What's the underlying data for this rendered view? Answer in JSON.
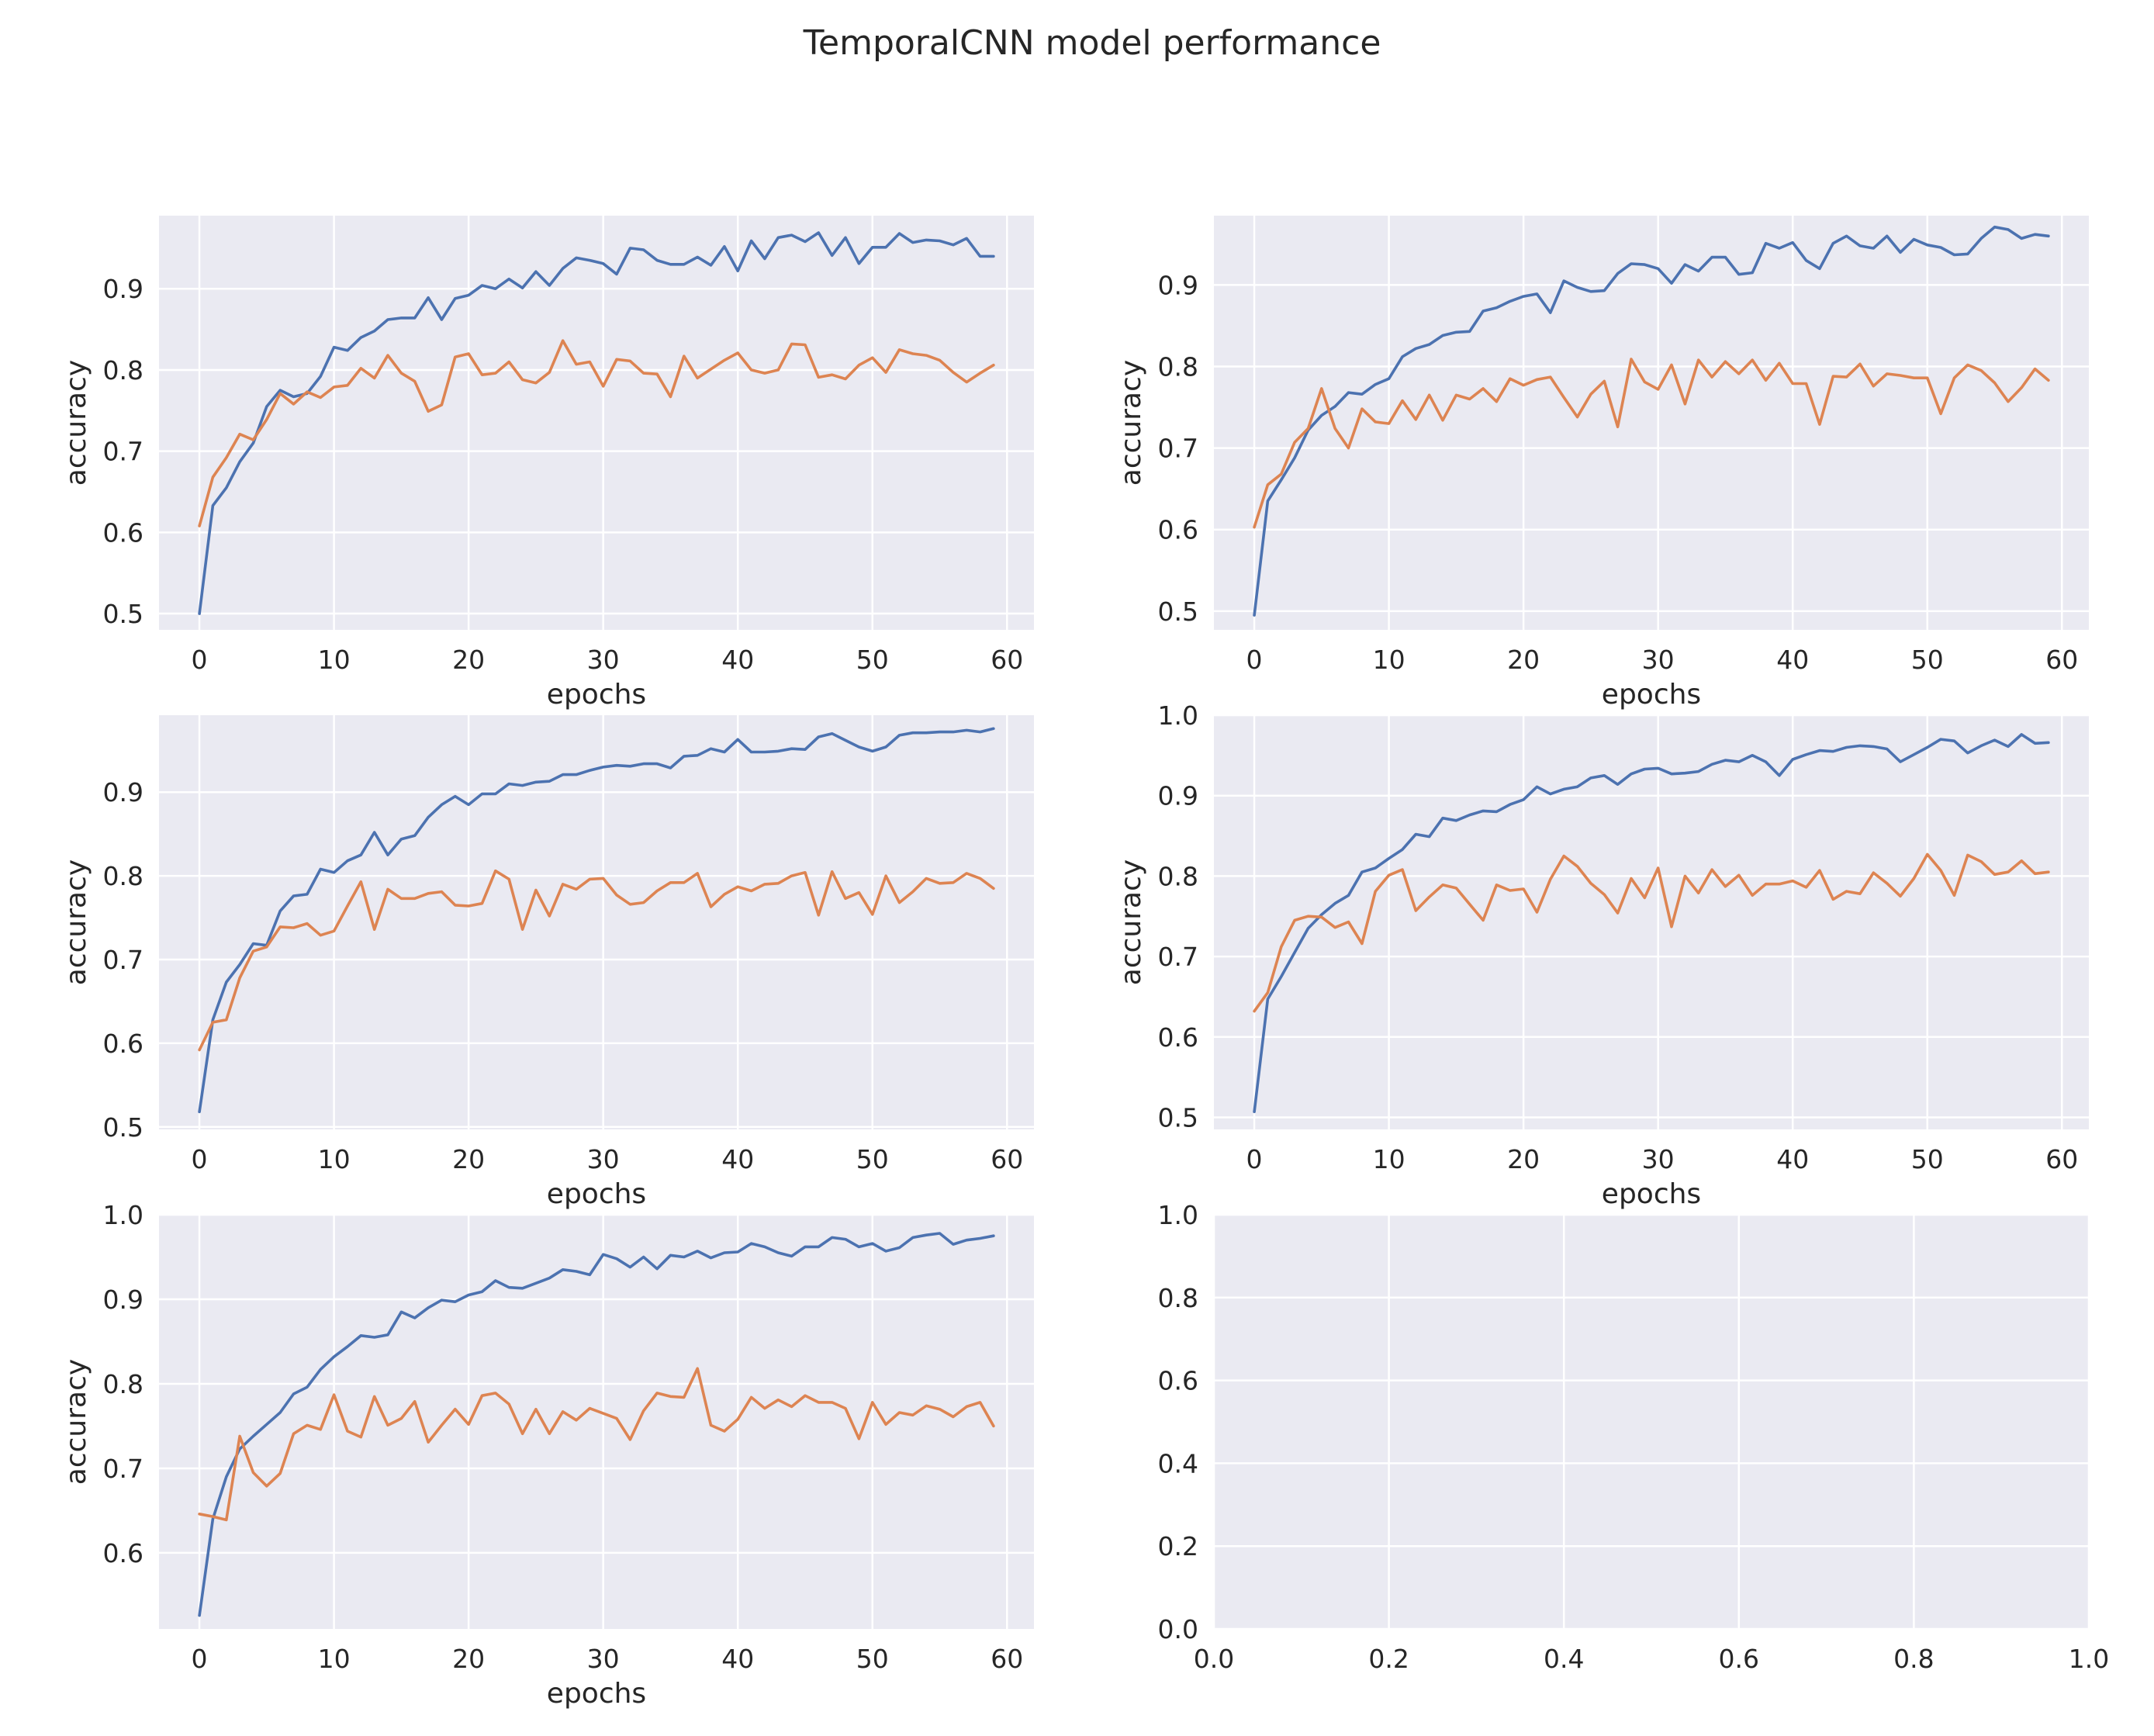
{
  "title": "TemporalCNN model performance",
  "colors": {
    "background": "#eaeaf2",
    "series_1": "#4c72b0",
    "series_2": "#dd8452",
    "grid": "#ffffff"
  },
  "chart_data": [
    {
      "type": "line",
      "xlabel": "epochs",
      "ylabel": "accuracy",
      "xlim": [
        -3,
        62
      ],
      "ylim": [
        0.48,
        0.99
      ],
      "xticks": [
        0,
        10,
        20,
        30,
        40,
        50,
        60
      ],
      "yticks": [
        0.5,
        0.6,
        0.7,
        0.8,
        0.9
      ],
      "x": [
        0,
        1,
        2,
        3,
        4,
        5,
        6,
        7,
        8,
        9,
        10,
        11,
        12,
        13,
        14,
        15,
        16,
        17,
        18,
        19,
        20,
        21,
        22,
        23,
        24,
        25,
        26,
        27,
        28,
        29,
        30,
        31,
        32,
        33,
        34,
        35,
        36,
        37,
        38,
        39,
        40,
        41,
        42,
        43,
        44,
        45,
        46,
        47,
        48,
        49,
        50,
        51,
        52,
        53,
        54,
        55,
        56,
        57,
        58,
        59
      ],
      "series": [
        {
          "color": "#4c72b0",
          "values": [
            0.5,
            0.633,
            0.655,
            0.687,
            0.71,
            0.755,
            0.775,
            0.767,
            0.771,
            0.792,
            0.828,
            0.824,
            0.84,
            0.848,
            0.862,
            0.864,
            0.864,
            0.889,
            0.862,
            0.888,
            0.892,
            0.904,
            0.9,
            0.912,
            0.901,
            0.921,
            0.904,
            0.925,
            0.938,
            0.935,
            0.931,
            0.918,
            0.95,
            0.948,
            0.935,
            0.93,
            0.93,
            0.939,
            0.929,
            0.952,
            0.922,
            0.959,
            0.937,
            0.963,
            0.966,
            0.958,
            0.969,
            0.941,
            0.963,
            0.931,
            0.951,
            0.951,
            0.968,
            0.957,
            0.96,
            0.959,
            0.954,
            0.962,
            0.94,
            0.94
          ]
        },
        {
          "color": "#dd8452",
          "values": [
            0.608,
            0.668,
            0.692,
            0.721,
            0.714,
            0.739,
            0.771,
            0.758,
            0.773,
            0.766,
            0.779,
            0.781,
            0.802,
            0.79,
            0.818,
            0.796,
            0.786,
            0.749,
            0.757,
            0.816,
            0.82,
            0.794,
            0.796,
            0.81,
            0.788,
            0.784,
            0.797,
            0.836,
            0.807,
            0.81,
            0.78,
            0.813,
            0.811,
            0.796,
            0.795,
            0.767,
            0.817,
            0.79,
            0.801,
            0.812,
            0.821,
            0.8,
            0.796,
            0.8,
            0.832,
            0.831,
            0.791,
            0.794,
            0.789,
            0.806,
            0.815,
            0.797,
            0.825,
            0.82,
            0.818,
            0.812,
            0.797,
            0.785,
            0.796,
            0.806
          ]
        }
      ]
    },
    {
      "type": "line",
      "xlabel": "epochs",
      "ylabel": "accuracy",
      "xlim": [
        -3,
        62
      ],
      "ylim": [
        0.477,
        0.985
      ],
      "xticks": [
        0,
        10,
        20,
        30,
        40,
        50,
        60
      ],
      "yticks": [
        0.5,
        0.6,
        0.7,
        0.8,
        0.9
      ],
      "x": [
        0,
        1,
        2,
        3,
        4,
        5,
        6,
        7,
        8,
        9,
        10,
        11,
        12,
        13,
        14,
        15,
        16,
        17,
        18,
        19,
        20,
        21,
        22,
        23,
        24,
        25,
        26,
        27,
        28,
        29,
        30,
        31,
        32,
        33,
        34,
        35,
        36,
        37,
        38,
        39,
        40,
        41,
        42,
        43,
        44,
        45,
        46,
        47,
        48,
        49,
        50,
        51,
        52,
        53,
        54,
        55,
        56,
        57,
        58,
        59
      ],
      "series": [
        {
          "color": "#4c72b0",
          "values": [
            0.495,
            0.635,
            0.661,
            0.688,
            0.722,
            0.74,
            0.751,
            0.768,
            0.766,
            0.778,
            0.785,
            0.812,
            0.822,
            0.827,
            0.838,
            0.842,
            0.843,
            0.868,
            0.872,
            0.88,
            0.886,
            0.889,
            0.866,
            0.905,
            0.897,
            0.892,
            0.893,
            0.914,
            0.926,
            0.925,
            0.92,
            0.902,
            0.925,
            0.917,
            0.934,
            0.934,
            0.913,
            0.915,
            0.951,
            0.945,
            0.952,
            0.93,
            0.92,
            0.951,
            0.96,
            0.948,
            0.945,
            0.96,
            0.94,
            0.956,
            0.949,
            0.946,
            0.937,
            0.938,
            0.957,
            0.971,
            0.968,
            0.957,
            0.962,
            0.96
          ]
        },
        {
          "color": "#dd8452",
          "values": [
            0.603,
            0.655,
            0.668,
            0.707,
            0.724,
            0.773,
            0.724,
            0.7,
            0.748,
            0.732,
            0.73,
            0.758,
            0.735,
            0.765,
            0.734,
            0.765,
            0.76,
            0.773,
            0.757,
            0.785,
            0.777,
            0.784,
            0.787,
            0.762,
            0.738,
            0.766,
            0.782,
            0.726,
            0.809,
            0.781,
            0.772,
            0.802,
            0.754,
            0.808,
            0.787,
            0.806,
            0.791,
            0.808,
            0.783,
            0.804,
            0.779,
            0.779,
            0.729,
            0.788,
            0.787,
            0.803,
            0.776,
            0.791,
            0.789,
            0.786,
            0.786,
            0.742,
            0.786,
            0.802,
            0.795,
            0.78,
            0.757,
            0.774,
            0.797,
            0.783
          ]
        }
      ]
    },
    {
      "type": "line",
      "xlabel": "epochs",
      "ylabel": "accuracy",
      "xlim": [
        -3,
        62
      ],
      "ylim": [
        0.497,
        0.992
      ],
      "xticks": [
        0,
        10,
        20,
        30,
        40,
        50,
        60
      ],
      "yticks": [
        0.5,
        0.6,
        0.7,
        0.8,
        0.9
      ],
      "x": [
        0,
        1,
        2,
        3,
        4,
        5,
        6,
        7,
        8,
        9,
        10,
        11,
        12,
        13,
        14,
        15,
        16,
        17,
        18,
        19,
        20,
        21,
        22,
        23,
        24,
        25,
        26,
        27,
        28,
        29,
        30,
        31,
        32,
        33,
        34,
        35,
        36,
        37,
        38,
        39,
        40,
        41,
        42,
        43,
        44,
        45,
        46,
        47,
        48,
        49,
        50,
        51,
        52,
        53,
        54,
        55,
        56,
        57,
        58,
        59
      ],
      "series": [
        {
          "color": "#4c72b0",
          "values": [
            0.518,
            0.628,
            0.673,
            0.694,
            0.719,
            0.717,
            0.758,
            0.776,
            0.778,
            0.808,
            0.804,
            0.818,
            0.825,
            0.852,
            0.825,
            0.844,
            0.848,
            0.87,
            0.885,
            0.895,
            0.885,
            0.898,
            0.898,
            0.91,
            0.908,
            0.912,
            0.913,
            0.921,
            0.921,
            0.926,
            0.93,
            0.932,
            0.931,
            0.934,
            0.934,
            0.929,
            0.943,
            0.944,
            0.952,
            0.948,
            0.963,
            0.948,
            0.948,
            0.949,
            0.952,
            0.951,
            0.966,
            0.97,
            0.962,
            0.954,
            0.949,
            0.954,
            0.968,
            0.971,
            0.971,
            0.972,
            0.972,
            0.974,
            0.972,
            0.976
          ]
        },
        {
          "color": "#dd8452",
          "values": [
            0.592,
            0.625,
            0.628,
            0.678,
            0.71,
            0.715,
            0.739,
            0.738,
            0.743,
            0.729,
            0.734,
            0.764,
            0.793,
            0.736,
            0.784,
            0.773,
            0.773,
            0.779,
            0.781,
            0.765,
            0.764,
            0.767,
            0.806,
            0.796,
            0.736,
            0.783,
            0.752,
            0.79,
            0.784,
            0.796,
            0.797,
            0.777,
            0.766,
            0.768,
            0.782,
            0.792,
            0.792,
            0.803,
            0.763,
            0.778,
            0.787,
            0.782,
            0.79,
            0.791,
            0.8,
            0.804,
            0.753,
            0.805,
            0.773,
            0.78,
            0.754,
            0.8,
            0.768,
            0.781,
            0.797,
            0.791,
            0.792,
            0.803,
            0.797,
            0.785
          ]
        }
      ]
    },
    {
      "type": "line",
      "xlabel": "epochs",
      "ylabel": "accuracy",
      "xlim": [
        -3,
        62
      ],
      "ylim": [
        0.485,
        1.0
      ],
      "xticks": [
        0,
        10,
        20,
        30,
        40,
        50,
        60
      ],
      "yticks": [
        0.5,
        0.6,
        0.7,
        0.8,
        0.9,
        1.0
      ],
      "x": [
        0,
        1,
        2,
        3,
        4,
        5,
        6,
        7,
        8,
        9,
        10,
        11,
        12,
        13,
        14,
        15,
        16,
        17,
        18,
        19,
        20,
        21,
        22,
        23,
        24,
        25,
        26,
        27,
        28,
        29,
        30,
        31,
        32,
        33,
        34,
        35,
        36,
        37,
        38,
        39,
        40,
        41,
        42,
        43,
        44,
        45,
        46,
        47,
        48,
        49,
        50,
        51,
        52,
        53,
        54,
        55,
        56,
        57,
        58,
        59
      ],
      "series": [
        {
          "color": "#4c72b0",
          "values": [
            0.507,
            0.647,
            0.675,
            0.705,
            0.735,
            0.752,
            0.766,
            0.776,
            0.805,
            0.81,
            0.822,
            0.833,
            0.852,
            0.849,
            0.872,
            0.869,
            0.876,
            0.881,
            0.88,
            0.889,
            0.895,
            0.911,
            0.902,
            0.908,
            0.911,
            0.922,
            0.925,
            0.914,
            0.927,
            0.933,
            0.934,
            0.927,
            0.928,
            0.93,
            0.939,
            0.944,
            0.942,
            0.95,
            0.942,
            0.925,
            0.945,
            0.951,
            0.956,
            0.955,
            0.96,
            0.962,
            0.961,
            0.958,
            0.942,
            0.951,
            0.96,
            0.97,
            0.968,
            0.953,
            0.962,
            0.969,
            0.961,
            0.976,
            0.965,
            0.966
          ]
        },
        {
          "color": "#dd8452",
          "values": [
            0.632,
            0.655,
            0.712,
            0.745,
            0.75,
            0.749,
            0.736,
            0.743,
            0.716,
            0.781,
            0.801,
            0.808,
            0.757,
            0.774,
            0.789,
            0.785,
            0.765,
            0.745,
            0.789,
            0.782,
            0.784,
            0.755,
            0.796,
            0.825,
            0.812,
            0.791,
            0.777,
            0.754,
            0.797,
            0.773,
            0.81,
            0.737,
            0.8,
            0.779,
            0.808,
            0.787,
            0.801,
            0.776,
            0.79,
            0.79,
            0.794,
            0.786,
            0.807,
            0.771,
            0.781,
            0.778,
            0.804,
            0.791,
            0.775,
            0.797,
            0.827,
            0.807,
            0.776,
            0.826,
            0.818,
            0.802,
            0.805,
            0.819,
            0.803,
            0.805
          ]
        }
      ]
    },
    {
      "type": "line",
      "xlabel": "epochs",
      "ylabel": "accuracy",
      "xlim": [
        -3,
        62
      ],
      "ylim": [
        0.51,
        1.0
      ],
      "xticks": [
        0,
        10,
        20,
        30,
        40,
        50,
        60
      ],
      "yticks": [
        0.6,
        0.7,
        0.8,
        0.9,
        1.0
      ],
      "x": [
        0,
        1,
        2,
        3,
        4,
        5,
        6,
        7,
        8,
        9,
        10,
        11,
        12,
        13,
        14,
        15,
        16,
        17,
        18,
        19,
        20,
        21,
        22,
        23,
        24,
        25,
        26,
        27,
        28,
        29,
        30,
        31,
        32,
        33,
        34,
        35,
        36,
        37,
        38,
        39,
        40,
        41,
        42,
        43,
        44,
        45,
        46,
        47,
        48,
        49,
        50,
        51,
        52,
        53,
        54,
        55,
        56,
        57,
        58,
        59
      ],
      "series": [
        {
          "color": "#4c72b0",
          "values": [
            0.526,
            0.64,
            0.69,
            0.723,
            0.738,
            0.752,
            0.766,
            0.788,
            0.796,
            0.817,
            0.832,
            0.844,
            0.857,
            0.855,
            0.858,
            0.885,
            0.878,
            0.89,
            0.899,
            0.897,
            0.905,
            0.909,
            0.922,
            0.914,
            0.913,
            0.919,
            0.925,
            0.935,
            0.933,
            0.929,
            0.953,
            0.948,
            0.938,
            0.95,
            0.936,
            0.952,
            0.95,
            0.957,
            0.949,
            0.955,
            0.956,
            0.966,
            0.962,
            0.955,
            0.951,
            0.962,
            0.962,
            0.973,
            0.971,
            0.962,
            0.966,
            0.957,
            0.961,
            0.973,
            0.976,
            0.978,
            0.965,
            0.97,
            0.972,
            0.975
          ]
        },
        {
          "color": "#dd8452",
          "values": [
            0.646,
            0.643,
            0.639,
            0.738,
            0.695,
            0.679,
            0.694,
            0.741,
            0.751,
            0.746,
            0.787,
            0.744,
            0.737,
            0.785,
            0.751,
            0.759,
            0.779,
            0.731,
            0.751,
            0.77,
            0.752,
            0.786,
            0.789,
            0.776,
            0.741,
            0.77,
            0.741,
            0.767,
            0.757,
            0.771,
            0.765,
            0.759,
            0.734,
            0.768,
            0.789,
            0.785,
            0.784,
            0.818,
            0.751,
            0.744,
            0.758,
            0.784,
            0.771,
            0.781,
            0.773,
            0.786,
            0.778,
            0.778,
            0.771,
            0.735,
            0.778,
            0.752,
            0.766,
            0.763,
            0.774,
            0.77,
            0.761,
            0.773,
            0.778,
            0.75
          ]
        }
      ]
    },
    {
      "type": "line",
      "xlim": [
        0,
        1
      ],
      "ylim": [
        0,
        1
      ],
      "xticks": [
        0.0,
        0.2,
        0.4,
        0.6,
        0.8,
        1.0
      ],
      "yticks": [
        0.0,
        0.2,
        0.4,
        0.6,
        0.8,
        1.0
      ],
      "xticklabels": [
        "0.0",
        "0.2",
        "0.4",
        "0.6",
        "0.8",
        "1.0"
      ],
      "yticklabels": [
        "0.0",
        "0.2",
        "0.4",
        "0.6",
        "0.8",
        "1.0"
      ],
      "series": []
    }
  ]
}
